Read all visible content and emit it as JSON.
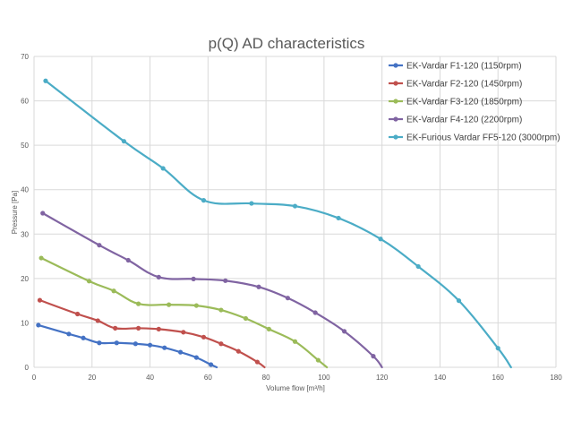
{
  "chart_data": {
    "type": "line",
    "title": "p(Q) AD characteristics",
    "xlabel": "Volume flow [m³/h]",
    "ylabel": "Pressure [Pa]",
    "xlim": [
      0,
      180
    ],
    "ylim": [
      0,
      70
    ],
    "x_ticks": [
      "0",
      "20",
      "40",
      "60",
      "80",
      "100",
      "120",
      "140",
      "160",
      "180"
    ],
    "y_ticks": [
      "0",
      "10",
      "20",
      "30",
      "40",
      "50",
      "60",
      "70"
    ],
    "grid": true,
    "legend_position": "top-right",
    "series": [
      {
        "name": "EK-Vardar F1-120 (1150rpm)",
        "color": "#4472c4",
        "points": [
          [
            1.5,
            9.5
          ],
          [
            12,
            7.5
          ],
          [
            17,
            6.6
          ],
          [
            22.5,
            5.5
          ],
          [
            28.5,
            5.5
          ],
          [
            35,
            5.3
          ],
          [
            40,
            5.0
          ],
          [
            45,
            4.4
          ],
          [
            50.5,
            3.4
          ],
          [
            56,
            2.2
          ],
          [
            61,
            0.6
          ],
          [
            63,
            0
          ]
        ]
      },
      {
        "name": "EK-Vardar F2-120 (1450rpm)",
        "color": "#c0504d",
        "points": [
          [
            2,
            15.1
          ],
          [
            15,
            12.0
          ],
          [
            22,
            10.5
          ],
          [
            28,
            8.8
          ],
          [
            36,
            8.8
          ],
          [
            43,
            8.6
          ],
          [
            51.5,
            7.9
          ],
          [
            58.5,
            6.8
          ],
          [
            64.5,
            5.3
          ],
          [
            70.5,
            3.6
          ],
          [
            77,
            1.2
          ],
          [
            79.5,
            0
          ]
        ]
      },
      {
        "name": "EK-Vardar F3-120 (1850rpm)",
        "color": "#9bbb59",
        "points": [
          [
            2.5,
            24.6
          ],
          [
            19,
            19.4
          ],
          [
            27.5,
            17.2
          ],
          [
            36,
            14.3
          ],
          [
            46.5,
            14.1
          ],
          [
            56,
            13.9
          ],
          [
            64.5,
            12.9
          ],
          [
            73,
            11.0
          ],
          [
            81,
            8.6
          ],
          [
            90,
            5.8
          ],
          [
            98,
            1.6
          ],
          [
            101,
            0
          ]
        ]
      },
      {
        "name": "EK-Vardar F4-120 (2200rpm)",
        "color": "#8064a2",
        "points": [
          [
            3,
            34.7
          ],
          [
            22.5,
            27.5
          ],
          [
            32.5,
            24.1
          ],
          [
            43,
            20.3
          ],
          [
            55,
            19.9
          ],
          [
            66,
            19.5
          ],
          [
            77.5,
            18.1
          ],
          [
            87.5,
            15.6
          ],
          [
            97,
            12.3
          ],
          [
            107,
            8.1
          ],
          [
            117,
            2.5
          ],
          [
            120,
            0
          ]
        ]
      },
      {
        "name": "EK-Furious Vardar FF5-120 (3000rpm)",
        "color": "#4bacc6",
        "points": [
          [
            4,
            64.5
          ],
          [
            31,
            50.9
          ],
          [
            44.5,
            44.8
          ],
          [
            58.5,
            37.6
          ],
          [
            75,
            36.9
          ],
          [
            90,
            36.3
          ],
          [
            105,
            33.6
          ],
          [
            119.5,
            28.9
          ],
          [
            132.5,
            22.7
          ],
          [
            146.5,
            15.0
          ],
          [
            160,
            4.3
          ],
          [
            164.5,
            0
          ]
        ]
      }
    ]
  }
}
